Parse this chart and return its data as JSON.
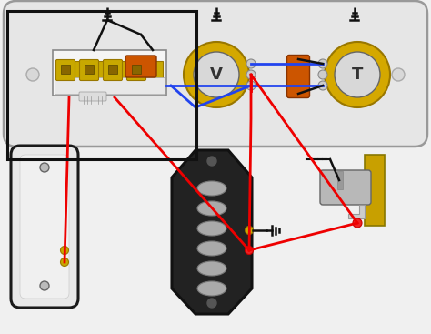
{
  "bg_color": "#f0f0f0",
  "plate_color": "#e6e6e6",
  "plate_border": "#999999",
  "pot_body_color": "#d4a800",
  "pot_inner_color": "#d8d8d8",
  "cap_color": "#cc5500",
  "switch_body_color": "#f2f2f2",
  "switch_contact_color": "#c8a800",
  "neck_pu_color": "#e8e8e8",
  "neck_pu_border": "#1a1a1a",
  "bridge_pu_color": "#222222",
  "bridge_pu_border": "#111111",
  "pole_color": "#aaaaaa",
  "pole_border": "#777777",
  "jack_wood_color": "#c8a000",
  "jack_metal_color": "#b8b8b8",
  "jack_bracket_color": "#c0c0c0",
  "wire_red": "#ee0000",
  "wire_blue": "#2244ee",
  "wire_black": "#111111",
  "ground_color": "#111111",
  "lug_color": "#cccccc",
  "lug_border": "#888888",
  "screw_color": "#bbbbbb",
  "screw_border": "#666666"
}
